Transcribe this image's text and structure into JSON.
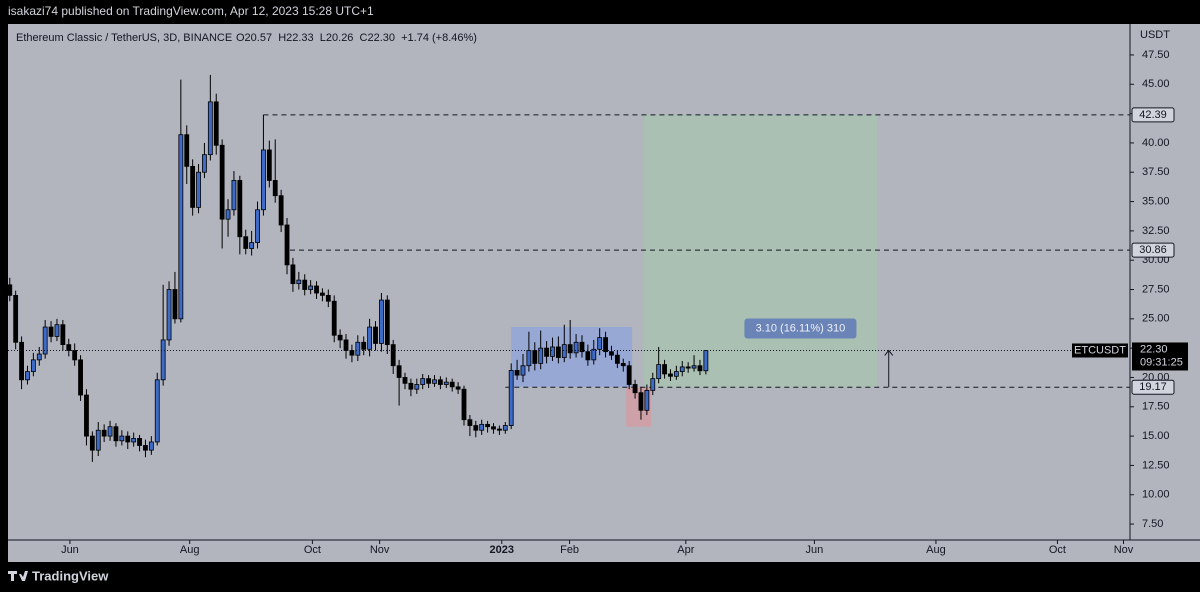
{
  "header": "isakazi74 published on TradingView.com, Apr 12, 2023 15:28 UTC+1",
  "footer": "TradingView",
  "chart_data": {
    "type": "candlestick",
    "title": "Ethereum Classic / TetherUS, 3D, BINANCE",
    "ohlc_text": "O20.57  H22.33  L20.26  C22.30  +1.74 (+8.46%)",
    "y_unit": "USDT",
    "grid": false,
    "categories": [
      null,
      null,
      null,
      null,
      null,
      null,
      null,
      null,
      null,
      null,
      null,
      null,
      null,
      null,
      null,
      null,
      null,
      null,
      null,
      null,
      null,
      null,
      null,
      null,
      null,
      null,
      null,
      null,
      null,
      null,
      null,
      null,
      null,
      null,
      null,
      null,
      null,
      null,
      null,
      null,
      null,
      null,
      null,
      null,
      null,
      null,
      null,
      null,
      null,
      null,
      null,
      null,
      null,
      null,
      null,
      null,
      null,
      null,
      null,
      null,
      null,
      null,
      null,
      null,
      null,
      null,
      null,
      null,
      null,
      null,
      null,
      null,
      null,
      null,
      null,
      null,
      null,
      null,
      null,
      null,
      null,
      null,
      null,
      null,
      null,
      null,
      null,
      null,
      null,
      null,
      null,
      null,
      null,
      null,
      null,
      null,
      null,
      null,
      null,
      null,
      null,
      null,
      null,
      null,
      null,
      null,
      null,
      null,
      null,
      null,
      null,
      null,
      null,
      null,
      null,
      null,
      null,
      null,
      null
    ],
    "series": [
      {
        "name": "ETCUSDT",
        "color": "#3d6bc7",
        "down_color": "#000000",
        "open": [
          27.9,
          27.0,
          23.0,
          19.8,
          20.5,
          21.5,
          22.0,
          24.3,
          23.5,
          24.5,
          22.8,
          22.3,
          21.5,
          18.5,
          15.0,
          13.8,
          15.5,
          15.0,
          15.8,
          14.6,
          15.0,
          14.5,
          14.8,
          14.2,
          13.8,
          14.5,
          19.8,
          23.2,
          27.5,
          25.0,
          40.7,
          38.0,
          34.5,
          37.5,
          39.0,
          43.5,
          39.8,
          33.5,
          34.3,
          36.8,
          32.0,
          31.0,
          31.5,
          34.3,
          39.4,
          36.8,
          35.5,
          33.0,
          29.6,
          28.0,
          28.3,
          27.5,
          27.8,
          27.2,
          27.0,
          26.5,
          23.6,
          23.2,
          22.3,
          21.9,
          23.0,
          22.4,
          24.3,
          22.9,
          26.6,
          22.8,
          21.0,
          20.0,
          19.5,
          19.0,
          19.4,
          19.9,
          19.5,
          19.8,
          19.4,
          19.6,
          19.2,
          19.0,
          16.4,
          15.9,
          15.5,
          16.0,
          15.8,
          15.6,
          15.5,
          15.9,
          20.6,
          20.2,
          21.0,
          22.3,
          21.2,
          22.5,
          21.8,
          22.6,
          21.7,
          22.8,
          22.1,
          23.0,
          22.2,
          21.5,
          22.4,
          23.4,
          22.2,
          21.9,
          21.2,
          21.0,
          19.4,
          18.7,
          17.2,
          18.9,
          19.9,
          21.1,
          20.3,
          20.1,
          20.5,
          20.9,
          20.8,
          21.0,
          20.57
        ],
        "high": [
          28.5,
          27.4,
          23.5,
          21.0,
          22.1,
          22.6,
          24.9,
          24.8,
          25.0,
          24.9,
          23.3,
          22.9,
          21.9,
          19.0,
          15.4,
          16.2,
          16.0,
          16.3,
          16.1,
          15.5,
          15.4,
          15.3,
          15.1,
          14.7,
          15.0,
          20.4,
          27.9,
          28.2,
          29.0,
          45.4,
          41.5,
          38.6,
          38.2,
          40.0,
          45.8,
          44.2,
          40.3,
          35.2,
          37.6,
          37.2,
          32.6,
          32.5,
          35.0,
          42.4,
          40.2,
          40.3,
          36.0,
          33.6,
          30.2,
          29.0,
          28.8,
          28.3,
          28.2,
          27.6,
          27.5,
          27.0,
          24.1,
          23.7,
          22.8,
          23.6,
          23.5,
          25.0,
          24.8,
          27.2,
          27.0,
          23.2,
          21.5,
          20.4,
          19.9,
          19.9,
          20.3,
          20.2,
          20.2,
          20.1,
          20.0,
          19.9,
          19.6,
          19.3,
          16.8,
          16.3,
          16.4,
          16.3,
          16.1,
          15.9,
          16.2,
          21.2,
          21.5,
          22.0,
          23.9,
          23.0,
          24.0,
          23.1,
          23.4,
          23.5,
          24.5,
          24.9,
          23.7,
          23.6,
          22.8,
          23.2,
          24.2,
          23.9,
          22.7,
          22.3,
          21.6,
          21.4,
          19.8,
          19.2,
          19.4,
          20.4,
          22.6,
          21.5,
          20.7,
          21.0,
          21.4,
          21.3,
          21.9,
          21.5,
          22.33
        ],
        "low": [
          26.5,
          22.4,
          19.0,
          19.4,
          20.1,
          21.0,
          21.6,
          23.0,
          23.1,
          22.3,
          21.8,
          21.0,
          18.0,
          14.2,
          12.8,
          13.3,
          14.5,
          14.6,
          14.1,
          14.2,
          13.9,
          14.1,
          13.7,
          13.2,
          13.4,
          14.2,
          19.3,
          22.7,
          24.6,
          24.7,
          36.5,
          33.8,
          34.0,
          37.0,
          38.5,
          39.0,
          31.0,
          32.0,
          33.8,
          30.5,
          30.5,
          30.4,
          31.0,
          33.8,
          36.2,
          34.9,
          32.4,
          28.8,
          27.3,
          27.5,
          27.0,
          27.1,
          26.7,
          26.5,
          26.0,
          23.0,
          22.5,
          21.6,
          21.3,
          21.4,
          21.9,
          21.8,
          22.3,
          22.2,
          22.0,
          20.3,
          17.6,
          19.0,
          18.4,
          18.6,
          19.0,
          19.1,
          19.2,
          19.0,
          19.1,
          18.8,
          18.6,
          15.9,
          15.0,
          14.9,
          15.1,
          15.3,
          15.2,
          15.1,
          15.2,
          15.6,
          19.8,
          19.6,
          20.5,
          20.6,
          20.7,
          21.2,
          21.4,
          21.2,
          21.3,
          21.6,
          21.7,
          21.7,
          21.0,
          21.1,
          21.9,
          21.7,
          21.5,
          20.8,
          20.5,
          19.0,
          18.2,
          16.4,
          16.8,
          18.5,
          19.5,
          19.9,
          19.7,
          19.8,
          20.1,
          20.4,
          20.5,
          20.2,
          20.26
        ],
        "close": [
          27.0,
          23.0,
          19.8,
          20.5,
          21.5,
          22.0,
          24.3,
          23.5,
          24.5,
          22.8,
          22.3,
          21.5,
          18.5,
          15.0,
          13.8,
          15.5,
          15.0,
          15.8,
          14.6,
          15.0,
          14.5,
          14.8,
          14.2,
          13.8,
          14.5,
          19.8,
          23.2,
          27.5,
          25.0,
          40.7,
          38.0,
          34.5,
          37.5,
          39.0,
          43.5,
          39.8,
          33.5,
          34.3,
          36.8,
          32.0,
          31.0,
          31.5,
          34.3,
          39.4,
          36.8,
          35.5,
          33.0,
          29.6,
          28.0,
          28.3,
          27.5,
          27.8,
          27.2,
          27.0,
          26.5,
          23.6,
          23.2,
          22.3,
          21.9,
          23.0,
          22.4,
          24.3,
          22.9,
          26.6,
          22.8,
          21.0,
          20.0,
          19.5,
          19.0,
          19.4,
          19.9,
          19.5,
          19.8,
          19.4,
          19.6,
          19.2,
          19.0,
          16.4,
          15.9,
          15.5,
          16.0,
          15.8,
          15.6,
          15.5,
          15.9,
          20.6,
          20.2,
          21.0,
          22.3,
          21.2,
          22.5,
          21.8,
          22.6,
          21.7,
          22.8,
          22.1,
          23.0,
          22.2,
          21.5,
          22.4,
          23.4,
          22.2,
          21.9,
          21.2,
          21.0,
          19.4,
          18.7,
          17.2,
          18.9,
          19.9,
          21.1,
          20.3,
          20.1,
          20.5,
          20.9,
          20.8,
          21.0,
          20.57,
          22.3
        ],
        "last_label": "22.30",
        "countdown": "09:31:25"
      }
    ],
    "levels": [
      42.39,
      30.86,
      19.17
    ],
    "zones": [
      {
        "xlim": [
          85,
          105.5
        ],
        "ylim": [
          19.2,
          24.3
        ],
        "color": "#8ea4dc"
      },
      {
        "xlim": [
          104.5,
          108.7
        ],
        "ylim": [
          15.8,
          19.17
        ],
        "color": "#d79a9f"
      },
      {
        "xlim": [
          107.5,
          147
        ],
        "ylim": [
          19.17,
          42.39
        ],
        "color": "#a6c4ad"
      }
    ],
    "position_label": "3.10 (16.11%) 310",
    "arrow": {
      "x": 149,
      "from": 19.17,
      "to": 22.3
    },
    "xlim": [
      -0.3,
      189.9
    ],
    "ylim": [
      6.14,
      50.14
    ],
    "xticks": [
      {
        "value": 10.2,
        "label": "Jun"
      },
      {
        "value": 30.5,
        "label": "Aug"
      },
      {
        "value": 51.3,
        "label": "Oct"
      },
      {
        "value": 62.7,
        "label": "Nov"
      },
      {
        "value": 83.4,
        "label": "2023"
      },
      {
        "value": 94.9,
        "label": "Feb"
      },
      {
        "value": 114.6,
        "label": "Apr"
      },
      {
        "value": 136.4,
        "label": "Jun"
      },
      {
        "value": 157,
        "label": "Aug"
      },
      {
        "value": 177.6,
        "label": "Oct"
      },
      {
        "value": 188.8,
        "label": "Nov"
      }
    ],
    "yticks": [
      {
        "value": 7.5,
        "label": "7.50"
      },
      {
        "value": 10,
        "label": "10.00"
      },
      {
        "value": 12.5,
        "label": "12.50"
      },
      {
        "value": 15,
        "label": "15.00"
      },
      {
        "value": 17.5,
        "label": "17.50"
      },
      {
        "value": 20,
        "label": "20.00"
      },
      {
        "value": 22.5,
        "label": "22.50"
      },
      {
        "value": 25,
        "label": "25.00"
      },
      {
        "value": 27.5,
        "label": "27.50"
      },
      {
        "value": 30,
        "label": "30.00"
      },
      {
        "value": 32.5,
        "label": "32.50"
      },
      {
        "value": 35,
        "label": "35.00"
      },
      {
        "value": 37.5,
        "label": "37.50"
      },
      {
        "value": 40,
        "label": "40.00"
      },
      {
        "value": 42.5,
        "label": "42.50"
      },
      {
        "value": 45,
        "label": "45.00"
      },
      {
        "value": 47.5,
        "label": "47.50"
      }
    ]
  }
}
